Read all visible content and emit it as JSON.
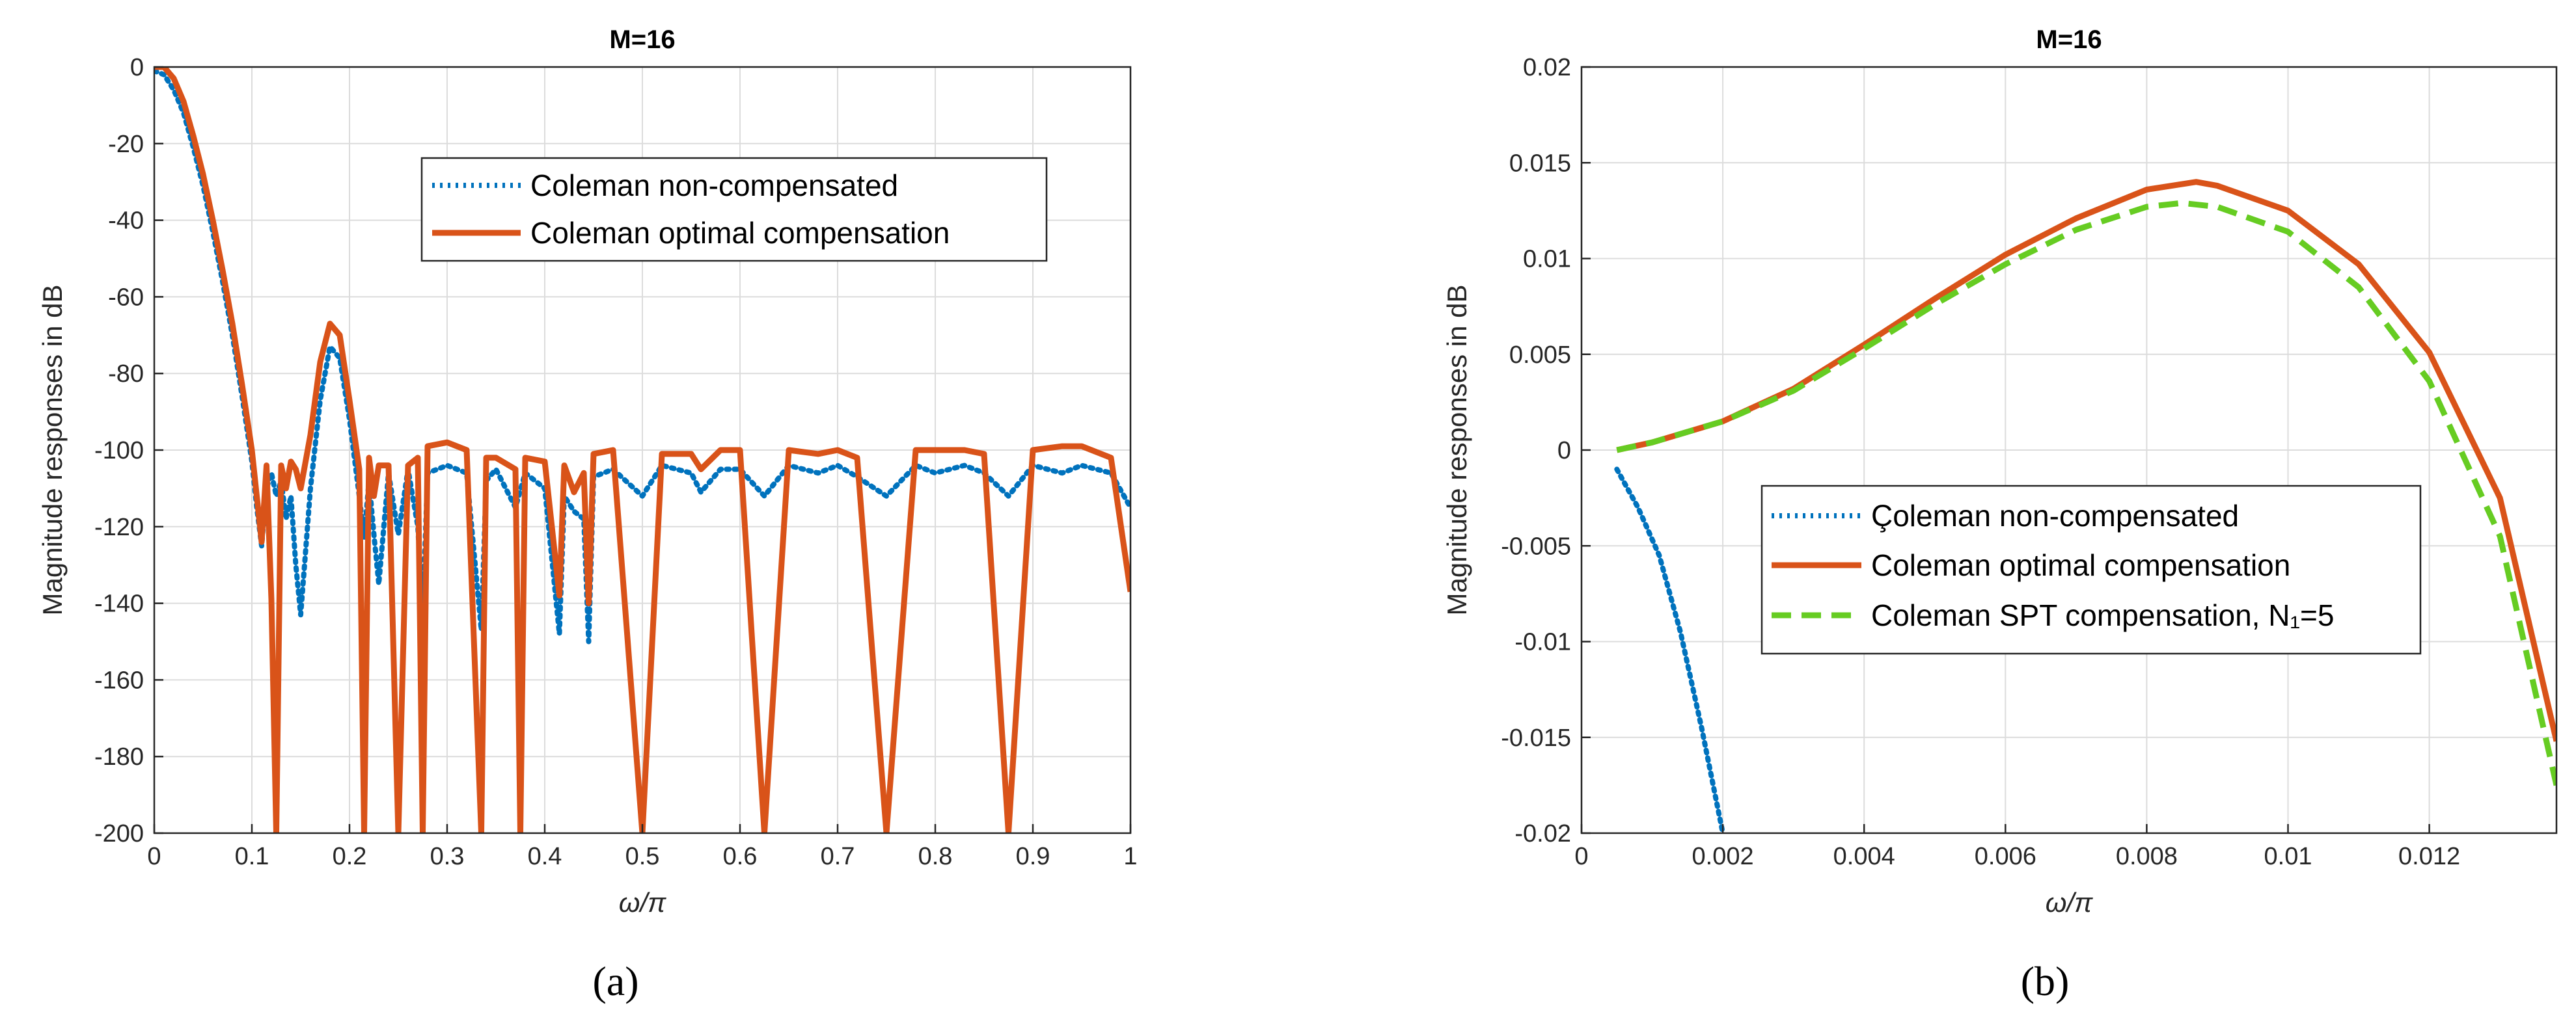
{
  "colors": {
    "non_compensated": "#0072BD",
    "optimal": "#D95319",
    "spt": "#66CC22"
  },
  "chart_data": [
    {
      "type": "line",
      "panel_label": "(a)",
      "title": "M=16",
      "xlabel": "ω/π",
      "ylabel": "Magnitude responses in dB",
      "xlim": [
        0,
        1
      ],
      "ylim": [
        -200,
        0
      ],
      "xticks": [
        "0",
        "0.1",
        "0.2",
        "0.3",
        "0.4",
        "0.5",
        "0.6",
        "0.7",
        "0.8",
        "0.9",
        "1"
      ],
      "yticks": [
        "0",
        "-20",
        "-40",
        "-60",
        "-80",
        "-100",
        "-120",
        "-140",
        "-160",
        "-180",
        "-200"
      ],
      "grid": true,
      "legend_position": "top-right",
      "series": [
        {
          "name": "Coleman non-compensated",
          "style": "dotted",
          "color": "#0072BD",
          "x": [
            0,
            0.01,
            0.02,
            0.03,
            0.04,
            0.05,
            0.06,
            0.07,
            0.08,
            0.09,
            0.1,
            0.105,
            0.11,
            0.115,
            0.12,
            0.125,
            0.13,
            0.135,
            0.14,
            0.145,
            0.15,
            0.16,
            0.17,
            0.18,
            0.19,
            0.2,
            0.21,
            0.215,
            0.22,
            0.225,
            0.23,
            0.24,
            0.25,
            0.26,
            0.27,
            0.275,
            0.28,
            0.3,
            0.32,
            0.335,
            0.34,
            0.35,
            0.37,
            0.38,
            0.4,
            0.415,
            0.42,
            0.43,
            0.44,
            0.445,
            0.45,
            0.47,
            0.5,
            0.52,
            0.55,
            0.56,
            0.58,
            0.6,
            0.625,
            0.65,
            0.68,
            0.7,
            0.72,
            0.75,
            0.78,
            0.8,
            0.83,
            0.85,
            0.875,
            0.9,
            0.93,
            0.95,
            0.98,
            1.0
          ],
          "y": [
            -1,
            -2,
            -6,
            -12,
            -21,
            -31,
            -43,
            -56,
            -70,
            -86,
            -103,
            -115,
            -125,
            -110,
            -106,
            -112,
            -108,
            -118,
            -112,
            -130,
            -143,
            -110,
            -87,
            -73,
            -76,
            -92,
            -112,
            -123,
            -108,
            -122,
            -135,
            -106,
            -122,
            -105,
            -120,
            -143,
            -106,
            -104,
            -106,
            -147,
            -108,
            -105,
            -115,
            -106,
            -110,
            -148,
            -112,
            -116,
            -118,
            -150,
            -107,
            -105,
            -112,
            -104,
            -106,
            -111,
            -105,
            -105,
            -112,
            -104,
            -106,
            -104,
            -107,
            -112,
            -104,
            -106,
            -104,
            -106,
            -112,
            -104,
            -106,
            -104,
            -106,
            -115
          ]
        },
        {
          "name": "Coleman optimal compensation",
          "style": "solid",
          "color": "#D95319",
          "x": [
            0,
            0.01,
            0.02,
            0.03,
            0.04,
            0.05,
            0.06,
            0.07,
            0.08,
            0.09,
            0.1,
            0.105,
            0.11,
            0.115,
            0.12,
            0.125,
            0.13,
            0.135,
            0.14,
            0.145,
            0.15,
            0.16,
            0.17,
            0.18,
            0.19,
            0.2,
            0.21,
            0.215,
            0.22,
            0.225,
            0.23,
            0.24,
            0.25,
            0.26,
            0.27,
            0.275,
            0.28,
            0.3,
            0.32,
            0.335,
            0.34,
            0.35,
            0.37,
            0.375,
            0.38,
            0.4,
            0.415,
            0.42,
            0.43,
            0.44,
            0.445,
            0.45,
            0.47,
            0.5,
            0.52,
            0.55,
            0.56,
            0.58,
            0.6,
            0.625,
            0.65,
            0.68,
            0.7,
            0.72,
            0.75,
            0.78,
            0.8,
            0.83,
            0.85,
            0.875,
            0.9,
            0.93,
            0.95,
            0.98,
            1.0
          ],
          "y": [
            0,
            0,
            -3,
            -9,
            -18,
            -28,
            -40,
            -53,
            -67,
            -83,
            -100,
            -112,
            -124,
            -104,
            -139,
            -200,
            -104,
            -110,
            -103,
            -105,
            -110,
            -96,
            -77,
            -67,
            -70,
            -87,
            -105,
            -200,
            -102,
            -112,
            -104,
            -104,
            -200,
            -104,
            -102,
            -200,
            -99,
            -98,
            -100,
            -200,
            -102,
            -102,
            -105,
            -200,
            -102,
            -103,
            -138,
            -104,
            -111,
            -106,
            -140,
            -101,
            -100,
            -200,
            -101,
            -101,
            -105,
            -100,
            -100,
            -200,
            -100,
            -101,
            -100,
            -102,
            -200,
            -100,
            -100,
            -100,
            -101,
            -200,
            -100,
            -99,
            -99,
            -102,
            -137
          ]
        }
      ]
    },
    {
      "type": "line",
      "panel_label": "(b)",
      "title": "M=16",
      "xlabel": "ω/π",
      "ylabel": "Magnitude responses in dB",
      "xlim": [
        0,
        0.0138
      ],
      "ylim": [
        -0.02,
        0.02
      ],
      "xticks": [
        "0",
        "0.002",
        "0.004",
        "0.006",
        "0.008",
        "0.01",
        "0.012"
      ],
      "yticks": [
        "0.02",
        "0.015",
        "0.01",
        "0.005",
        "0",
        "-0.005",
        "-0.01",
        "-0.015",
        "-0.02"
      ],
      "grid": true,
      "legend_position": "lower-center",
      "series": [
        {
          "name": "Çoleman non-compensated",
          "style": "dotted",
          "color": "#0072BD",
          "x": [
            0.0005,
            0.0008,
            0.0011,
            0.0014,
            0.0017,
            0.002
          ],
          "y": [
            -0.001,
            -0.003,
            -0.0055,
            -0.0095,
            -0.0145,
            -0.02
          ]
        },
        {
          "name": "Coleman optimal compensation",
          "style": "solid",
          "color": "#D95319",
          "x": [
            0.0005,
            0.001,
            0.002,
            0.003,
            0.004,
            0.005,
            0.006,
            0.007,
            0.008,
            0.0087,
            0.009,
            0.01,
            0.011,
            0.012,
            0.013,
            0.0138
          ],
          "y": [
            0,
            0.0004,
            0.0015,
            0.0032,
            0.0055,
            0.0079,
            0.0102,
            0.0121,
            0.0136,
            0.014,
            0.0138,
            0.0125,
            0.0097,
            0.0051,
            -0.0025,
            -0.0152
          ]
        },
        {
          "name": "Coleman SPT compensation, N₁=5",
          "style": "dashed",
          "color": "#66CC22",
          "x": [
            0.0005,
            0.001,
            0.002,
            0.003,
            0.004,
            0.005,
            0.006,
            0.007,
            0.008,
            0.0085,
            0.009,
            0.01,
            0.011,
            0.012,
            0.013,
            0.0138
          ],
          "y": [
            0,
            0.0004,
            0.0015,
            0.0031,
            0.0053,
            0.0076,
            0.0097,
            0.0115,
            0.0127,
            0.0129,
            0.0127,
            0.0114,
            0.0085,
            0.0036,
            -0.0045,
            -0.0175
          ]
        }
      ]
    }
  ]
}
